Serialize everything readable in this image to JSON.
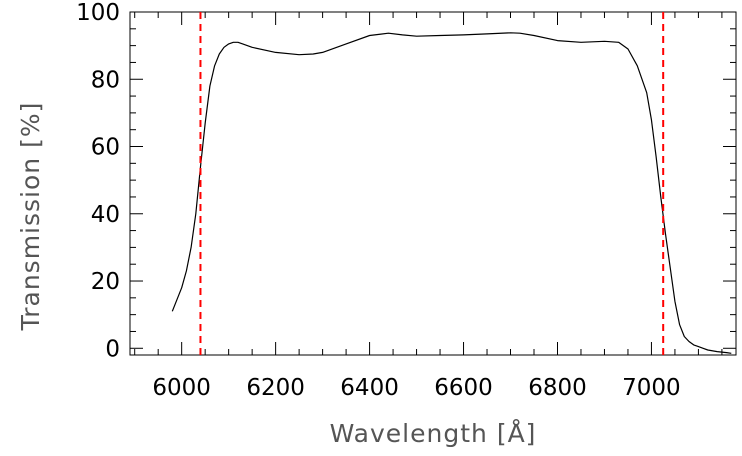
{
  "chart_data": {
    "type": "line",
    "title": "",
    "xlabel": "Wavelength [Å]",
    "ylabel": "Transmission [%]",
    "xlim": [
      5890,
      7180
    ],
    "ylim": [
      -2,
      100
    ],
    "xticks": [
      6000,
      6200,
      6400,
      6600,
      6800,
      7000
    ],
    "xtick_labels": [
      "6000",
      "6200",
      "6400",
      "6600",
      "6800",
      "7000"
    ],
    "yticks": [
      0,
      20,
      40,
      60,
      80,
      100
    ],
    "ytick_labels": [
      "0",
      "20",
      "40",
      "60",
      "80",
      "100"
    ],
    "grid": false,
    "series": [
      {
        "color": "#000000",
        "x": [
          5980,
          6000,
          6010,
          6020,
          6030,
          6040,
          6050,
          6060,
          6070,
          6080,
          6090,
          6100,
          6110,
          6120,
          6130,
          6150,
          6200,
          6250,
          6280,
          6300,
          6350,
          6400,
          6440,
          6470,
          6500,
          6550,
          6600,
          6650,
          6700,
          6720,
          6750,
          6800,
          6850,
          6900,
          6930,
          6950,
          6970,
          6990,
          7000,
          7010,
          7020,
          7030,
          7040,
          7050,
          7060,
          7070,
          7080,
          7090,
          7100,
          7110,
          7120,
          7140,
          7160,
          7170
        ],
        "y": [
          11,
          18,
          23,
          30,
          40,
          54,
          67,
          78,
          84,
          87.5,
          89.5,
          90.5,
          91,
          91,
          90.5,
          89.5,
          88,
          87.3,
          87.5,
          88,
          90.5,
          93,
          93.7,
          93.2,
          92.8,
          93,
          93.2,
          93.5,
          93.8,
          93.7,
          93,
          91.5,
          91,
          91.3,
          91,
          89,
          84,
          76,
          68,
          57,
          45,
          34,
          24,
          14,
          7,
          3.5,
          2,
          1,
          0.5,
          0,
          -0.5,
          -1,
          -1.3,
          -1.5
        ]
      }
    ],
    "vlines": [
      {
        "x": 6040,
        "color": "#ff0000",
        "style": "dashed"
      },
      {
        "x": 7025,
        "color": "#ff0000",
        "style": "dashed"
      }
    ]
  }
}
